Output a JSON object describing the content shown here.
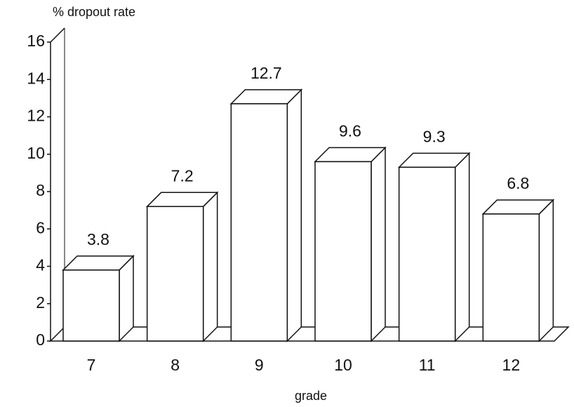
{
  "chart_data": {
    "type": "bar3d",
    "title": "% dropout rate",
    "xlabel": "grade",
    "categories": [
      "7",
      "8",
      "9",
      "10",
      "11",
      "12"
    ],
    "values": [
      3.8,
      7.2,
      12.7,
      9.6,
      9.3,
      6.8
    ],
    "color": "#ffffff",
    "ylim": [
      0,
      16
    ],
    "yticks": [
      0,
      2,
      4,
      6,
      8,
      10,
      12,
      14,
      16
    ]
  }
}
